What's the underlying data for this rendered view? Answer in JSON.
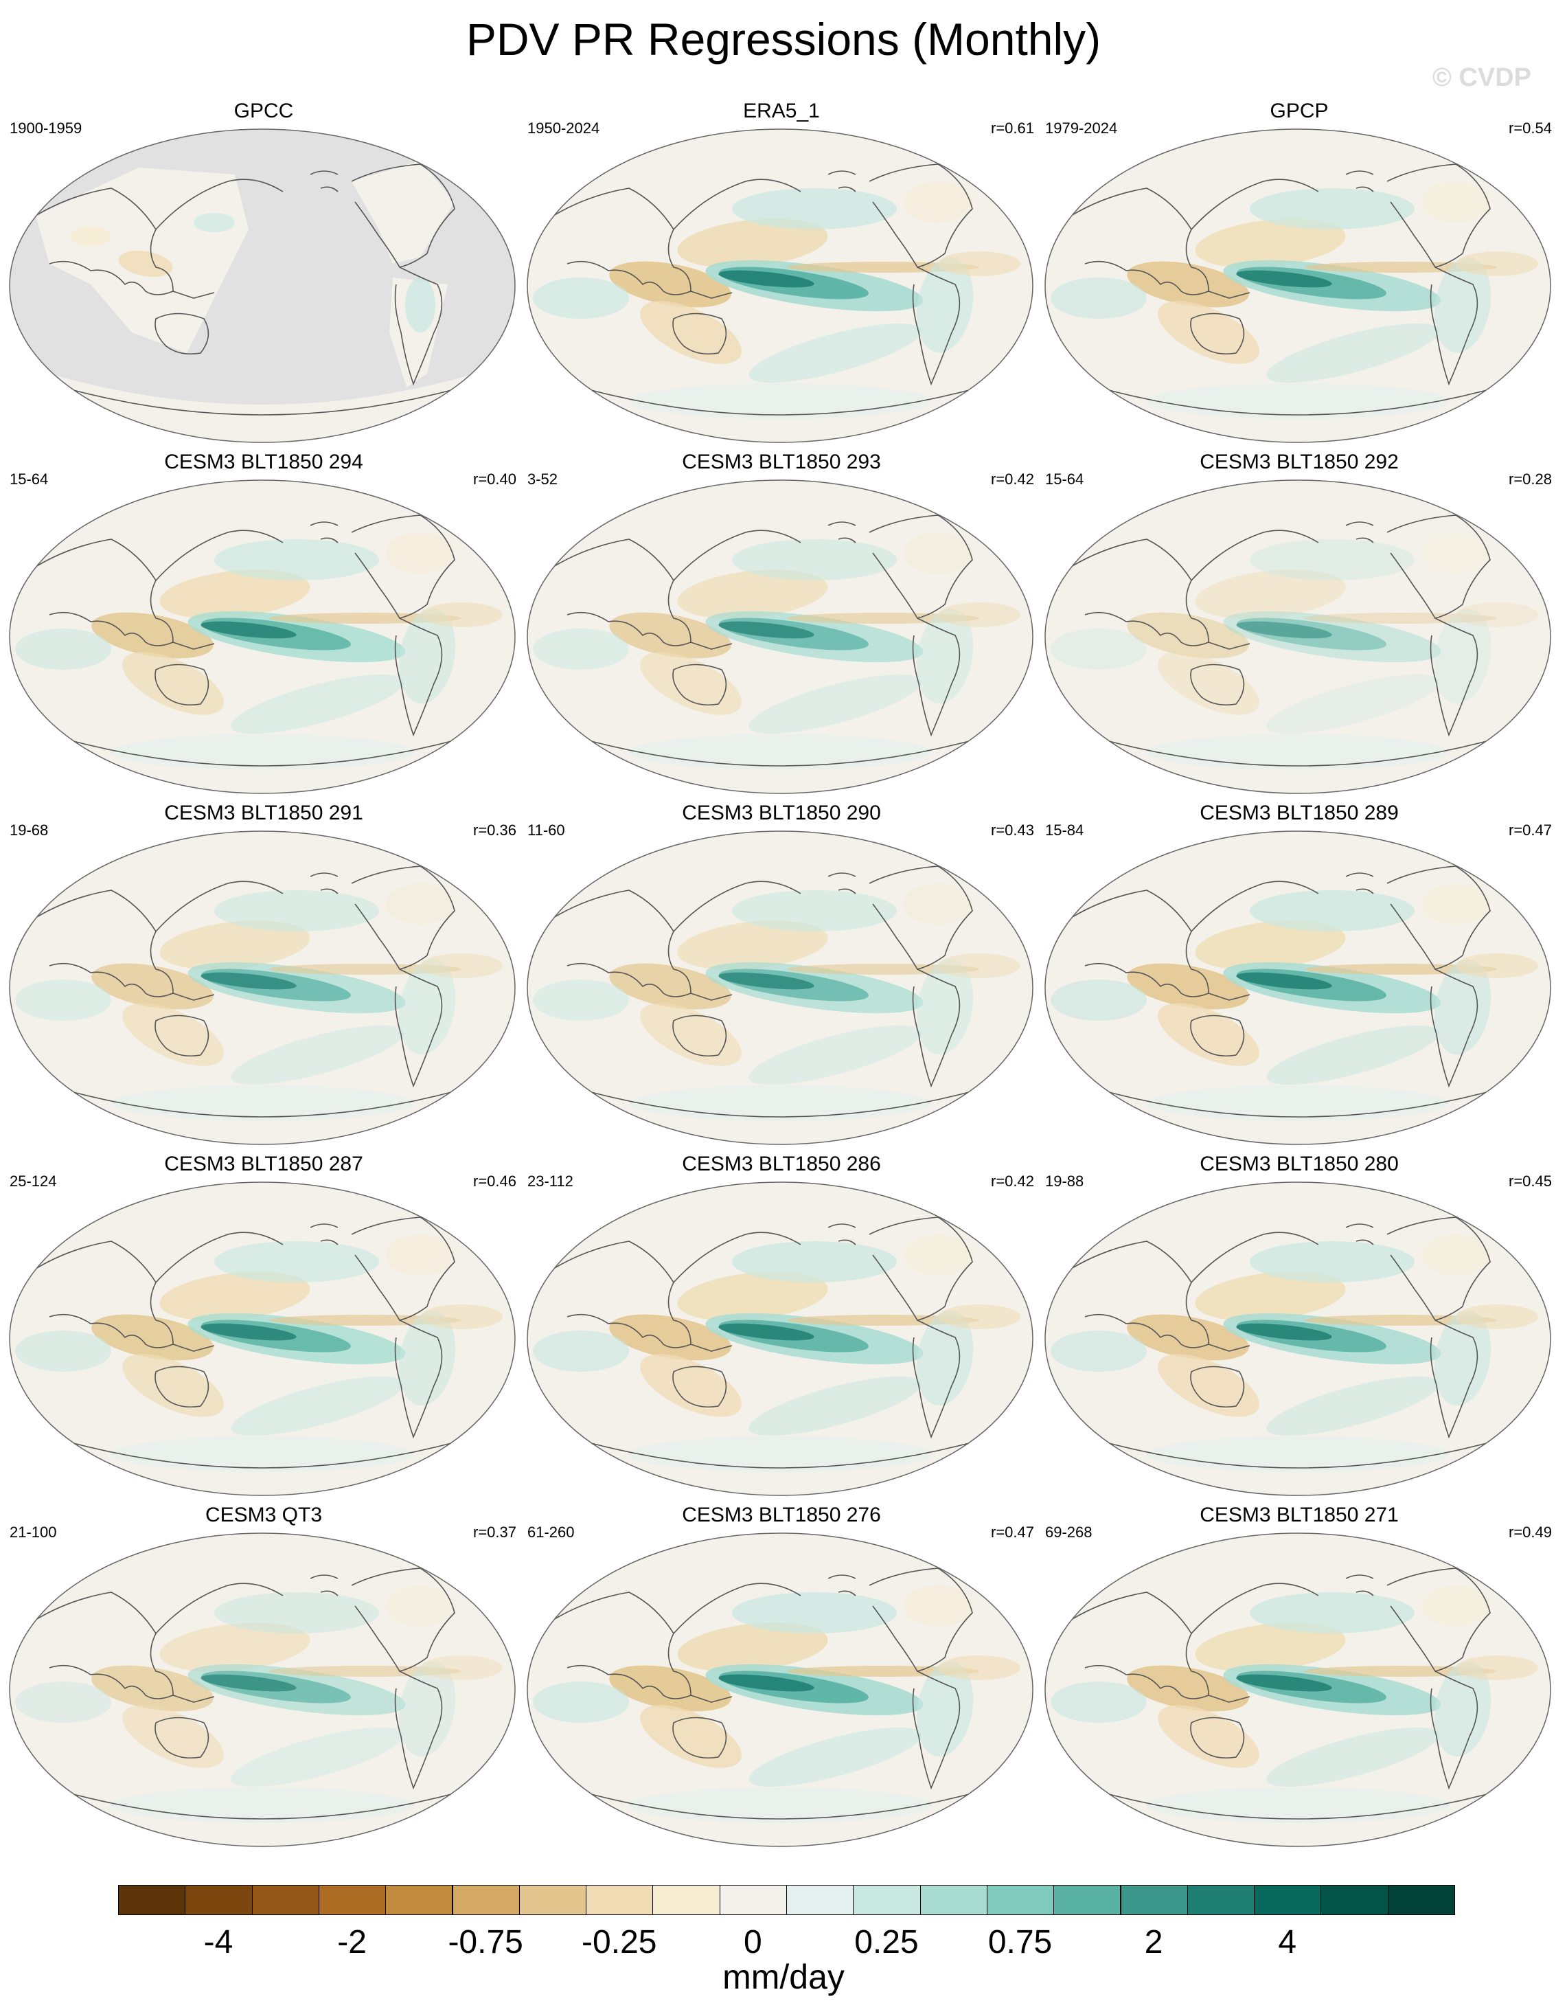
{
  "title": "PDV PR Regressions (Monthly)",
  "watermark": "© CVDP",
  "panels": [
    {
      "title": "GPCC",
      "period": "1900-1959",
      "corr": "",
      "observational_mask": true
    },
    {
      "title": "ERA5_1",
      "period": "1950-2024",
      "corr": "r=0.61",
      "strength": 1.0
    },
    {
      "title": "GPCP",
      "period": "1979-2024",
      "corr": "r=0.54",
      "strength": 0.95
    },
    {
      "title": "CESM3 BLT1850 294",
      "period": "15-64",
      "corr": "r=0.40",
      "strength": 0.9
    },
    {
      "title": "CESM3 BLT1850 293",
      "period": "3-52",
      "corr": "r=0.42",
      "strength": 0.8
    },
    {
      "title": "CESM3 BLT1850 292",
      "period": "15-64",
      "corr": "r=0.28",
      "strength": 0.55
    },
    {
      "title": "CESM3 BLT1850 291",
      "period": "19-68",
      "corr": "r=0.36",
      "strength": 0.8
    },
    {
      "title": "CESM3 BLT1850 290",
      "period": "11-60",
      "corr": "r=0.43",
      "strength": 0.8
    },
    {
      "title": "CESM3 BLT1850 289",
      "period": "15-84",
      "corr": "r=0.47",
      "strength": 0.95
    },
    {
      "title": "CESM3 BLT1850 287",
      "period": "25-124",
      "corr": "r=0.46",
      "strength": 0.9
    },
    {
      "title": "CESM3 BLT1850 286",
      "period": "23-112",
      "corr": "r=0.42",
      "strength": 0.95
    },
    {
      "title": "CESM3 BLT1850 280",
      "period": "19-88",
      "corr": "r=0.45",
      "strength": 0.95
    },
    {
      "title": "CESM3 QT3",
      "period": "21-100",
      "corr": "r=0.37",
      "strength": 0.75
    },
    {
      "title": "CESM3 BLT1850 276",
      "period": "61-260",
      "corr": "r=0.47",
      "strength": 1.0
    },
    {
      "title": "CESM3 BLT1850 271",
      "period": "69-268",
      "corr": "r=0.49",
      "strength": 0.95
    }
  ],
  "colorbar": {
    "units": "mm/day",
    "tick_labels": [
      "-4",
      "-2",
      "-0.75",
      "-0.25",
      "0",
      "0.25",
      "0.75",
      "2",
      "4"
    ],
    "colors": [
      "#5c3409",
      "#7c470f",
      "#955718",
      "#ad6c23",
      "#c18a3d",
      "#d3a964",
      "#e3c68e",
      "#efdcb5",
      "#f6ecd2",
      "#f4f1ea",
      "#e3f0ed",
      "#c7e7e1",
      "#a8dcd2",
      "#80cabd",
      "#58b1a3",
      "#3a978a",
      "#1f7f72",
      "#06695c",
      "#025449",
      "#014136"
    ]
  }
}
